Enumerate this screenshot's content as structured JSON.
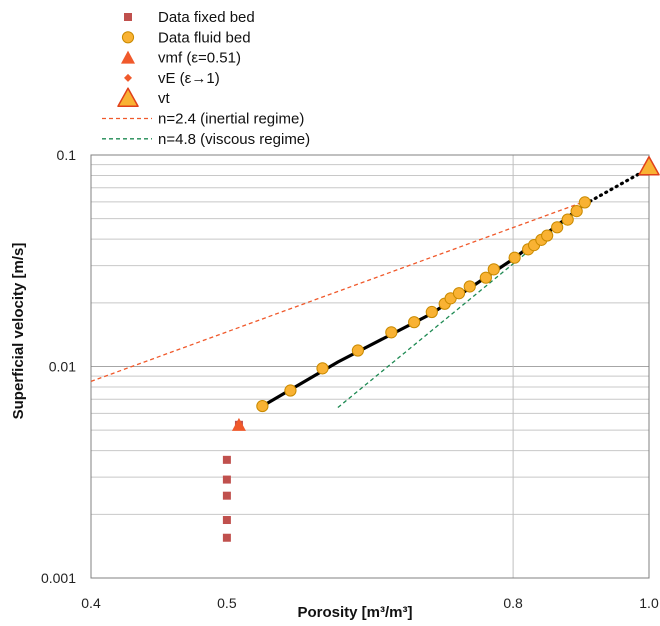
{
  "chart_data": {
    "type": "scatter",
    "xlabel": "Porosity [m³/m³]",
    "ylabel": "Superficial velocity [m/s]",
    "x_scale": "log",
    "y_scale": "log",
    "xlim": [
      0.4,
      1.0
    ],
    "ylim": [
      0.001,
      0.1
    ],
    "x_ticks": [
      {
        "value": 0.4,
        "label": "0.4"
      },
      {
        "value": 0.5,
        "label": "0.5"
      },
      {
        "value": 0.8,
        "label": "0.8"
      },
      {
        "value": 1.0,
        "label": "1.0"
      }
    ],
    "x_grid": [
      0.8,
      1.0
    ],
    "y_ticks": [
      {
        "value": 0.001,
        "label": "0.001"
      },
      {
        "value": 0.01,
        "label": "0.01"
      },
      {
        "value": 0.1,
        "label": "0.1"
      }
    ],
    "y_grid": "log-minor",
    "legend_position": "top-left",
    "series": [
      {
        "name": "Data fixed bed",
        "kind": "marker",
        "marker": "square",
        "color": "#c0504d",
        "points": [
          [
            0.5,
            0.00155
          ],
          [
            0.5,
            0.00188
          ],
          [
            0.5,
            0.00245
          ],
          [
            0.5,
            0.00292
          ],
          [
            0.5,
            0.00362
          ],
          [
            0.51,
            0.0053
          ]
        ]
      },
      {
        "name": "Data fluid bed",
        "kind": "marker",
        "marker": "circle",
        "color": "#f9b233",
        "stroke": "#c98a00",
        "points": [
          [
            0.53,
            0.0065
          ],
          [
            0.555,
            0.0077
          ],
          [
            0.585,
            0.0098
          ],
          [
            0.62,
            0.0119
          ],
          [
            0.655,
            0.0145
          ],
          [
            0.68,
            0.0162
          ],
          [
            0.7,
            0.0181
          ],
          [
            0.715,
            0.0198
          ],
          [
            0.722,
            0.021
          ],
          [
            0.732,
            0.0222
          ],
          [
            0.745,
            0.0239
          ],
          [
            0.765,
            0.0263
          ],
          [
            0.775,
            0.0288
          ],
          [
            0.802,
            0.0327
          ],
          [
            0.82,
            0.0358
          ],
          [
            0.828,
            0.0375
          ],
          [
            0.838,
            0.0397
          ],
          [
            0.846,
            0.0416
          ],
          [
            0.86,
            0.0455
          ],
          [
            0.875,
            0.0495
          ],
          [
            0.888,
            0.0543
          ],
          [
            0.9,
            0.0597
          ]
        ]
      },
      {
        "name": "vmf (ε=0.51)",
        "kind": "marker",
        "marker": "triangle",
        "color": "#f0592b",
        "points": [
          [
            0.51,
            0.0053
          ]
        ]
      },
      {
        "name": "vE (ε→1)",
        "kind": "marker",
        "marker": "diamond",
        "color": "#f0592b",
        "points": []
      },
      {
        "name": "vt",
        "kind": "marker",
        "marker": "triangle-big",
        "color": "#f9b233",
        "stroke": "#e0401a",
        "points": [
          [
            1.0,
            0.088
          ]
        ]
      },
      {
        "name": "n=2.4 (inertial regime)",
        "kind": "line",
        "dash": "4,3",
        "color": "#f0592b",
        "points": [
          [
            0.4,
            0.0085
          ],
          [
            0.895,
            0.0595
          ]
        ]
      },
      {
        "name": "n=4.8 (viscous regime)",
        "kind": "line",
        "dash": "4,3",
        "color": "#1e8a53",
        "points": [
          [
            0.6,
            0.0064
          ],
          [
            0.905,
            0.0598
          ]
        ]
      }
    ],
    "fit_curve": {
      "color": "#000000",
      "points": [
        [
          0.53,
          0.0065
        ],
        [
          0.6,
          0.0105
        ],
        [
          0.7,
          0.0178
        ],
        [
          0.8,
          0.0322
        ],
        [
          0.9,
          0.0585
        ]
      ]
    },
    "fit_extension": {
      "color": "#000000",
      "style": "dotted",
      "points": [
        [
          0.9,
          0.0585
        ],
        [
          1.0,
          0.0865
        ]
      ]
    }
  }
}
